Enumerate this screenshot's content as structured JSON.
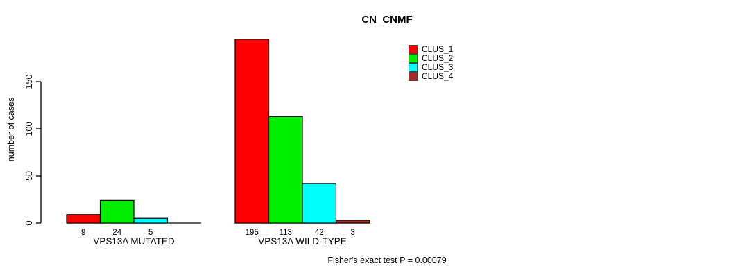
{
  "chart_data": {
    "type": "bar",
    "title": "CN_CNMF",
    "ylabel": "number of cases",
    "xlabel": "",
    "yticks": [
      0,
      50,
      100,
      150
    ],
    "ylim": [
      0,
      200
    ],
    "grid": false,
    "legend_position": "top-right",
    "categories": [
      "VPS13A MUTATED",
      "VPS13A WILD-TYPE"
    ],
    "series": [
      {
        "name": "CLUS_1",
        "color": "#ff0000",
        "values": [
          9,
          195
        ]
      },
      {
        "name": "CLUS_2",
        "color": "#00ee00",
        "values": [
          24,
          113
        ]
      },
      {
        "name": "CLUS_3",
        "color": "#00ffff",
        "values": [
          5,
          42
        ]
      },
      {
        "name": "CLUS_4",
        "color": "#a52a2a",
        "values": [
          0,
          3
        ]
      }
    ],
    "bar_labels": [
      [
        "9",
        "24",
        "5",
        ""
      ],
      [
        "195",
        "113",
        "42",
        "3"
      ]
    ],
    "annotation": "Fisher's exact test P = 0.00079"
  }
}
